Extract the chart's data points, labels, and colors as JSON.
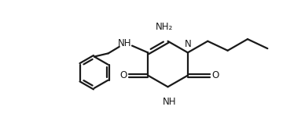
{
  "bg_color": "#ffffff",
  "line_color": "#1a1a1a",
  "line_width": 1.6,
  "font_size": 8.5,
  "fig_width": 3.88,
  "fig_height": 1.64,
  "dpi": 100,
  "xlim": [
    0,
    11
  ],
  "ylim": [
    0,
    5
  ]
}
